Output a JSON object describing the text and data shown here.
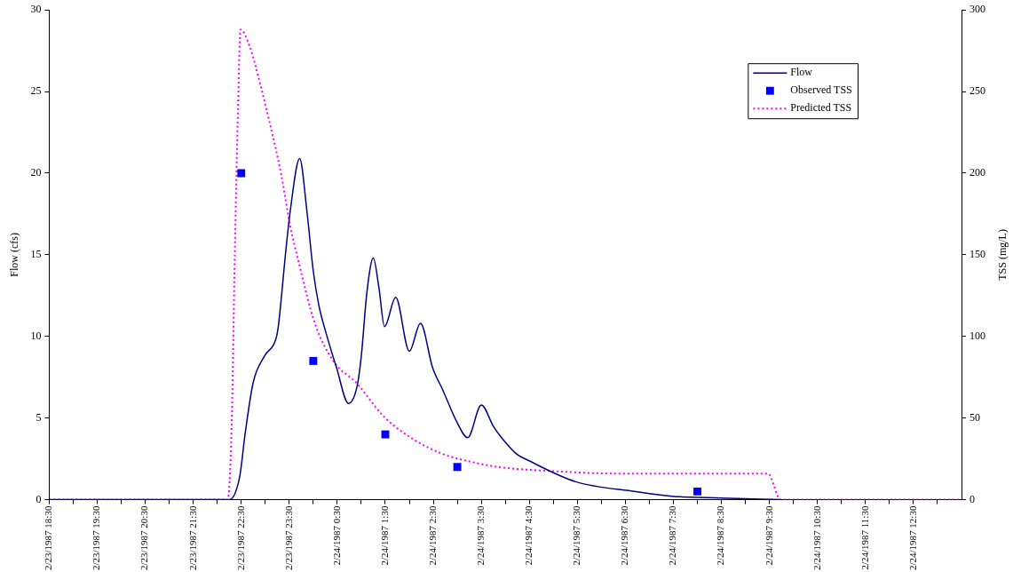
{
  "chart_data": {
    "type": "line",
    "ylabel": "Flow (cfs)",
    "y2label": "TSS (mg/L)",
    "legend": "top right",
    "xlim": [
      "1987-02-23T18:30",
      "1987-02-24T13:30"
    ],
    "xticks": [
      {
        "value": "1987-02-23T18:30",
        "label": "2/23/1987 18:30"
      },
      {
        "value": "1987-02-23T19:00",
        "label": null
      },
      {
        "value": "1987-02-23T19:30",
        "label": "2/23/1987 19:30"
      },
      {
        "value": "1987-02-23T20:00",
        "label": null
      },
      {
        "value": "1987-02-23T20:30",
        "label": "2/23/1987 20:30"
      },
      {
        "value": "1987-02-23T21:00",
        "label": null
      },
      {
        "value": "1987-02-23T21:30",
        "label": "2/23/1987 21:30"
      },
      {
        "value": "1987-02-23T22:00",
        "label": null
      },
      {
        "value": "1987-02-23T22:30",
        "label": "2/23/1987 22:30"
      },
      {
        "value": "1987-02-23T23:00",
        "label": null
      },
      {
        "value": "1987-02-23T23:30",
        "label": "2/23/1987 23:30"
      },
      {
        "value": "1987-02-24T00:00",
        "label": null
      },
      {
        "value": "1987-02-24T00:30",
        "label": "2/24/1987 0:30"
      },
      {
        "value": "1987-02-24T01:00",
        "label": null
      },
      {
        "value": "1987-02-24T01:30",
        "label": "2/24/1987 1:30"
      },
      {
        "value": "1987-02-24T02:00",
        "label": null
      },
      {
        "value": "1987-02-24T02:30",
        "label": "2/24/1987 2:30"
      },
      {
        "value": "1987-02-24T03:00",
        "label": null
      },
      {
        "value": "1987-02-24T03:30",
        "label": "2/24/1987 3:30"
      },
      {
        "value": "1987-02-24T04:00",
        "label": null
      },
      {
        "value": "1987-02-24T04:30",
        "label": "2/24/1987 4:30"
      },
      {
        "value": "1987-02-24T05:00",
        "label": null
      },
      {
        "value": "1987-02-24T05:30",
        "label": "2/24/1987 5:30"
      },
      {
        "value": "1987-02-24T06:00",
        "label": null
      },
      {
        "value": "1987-02-24T06:30",
        "label": "2/24/1987 6:30"
      },
      {
        "value": "1987-02-24T07:00",
        "label": null
      },
      {
        "value": "1987-02-24T07:30",
        "label": "2/24/1987 7:30"
      },
      {
        "value": "1987-02-24T08:00",
        "label": null
      },
      {
        "value": "1987-02-24T08:30",
        "label": "2/24/1987 8:30"
      },
      {
        "value": "1987-02-24T09:00",
        "label": null
      },
      {
        "value": "1987-02-24T09:30",
        "label": "2/24/1987 9:30"
      },
      {
        "value": "1987-02-24T10:00",
        "label": null
      },
      {
        "value": "1987-02-24T10:30",
        "label": "2/24/1987 10:30"
      },
      {
        "value": "1987-02-24T11:00",
        "label": null
      },
      {
        "value": "1987-02-24T11:30",
        "label": "2/24/1987 11:30"
      },
      {
        "value": "1987-02-24T12:00",
        "label": null
      },
      {
        "value": "1987-02-24T12:30",
        "label": "2/24/1987 12:30"
      },
      {
        "value": "1987-02-24T13:00",
        "label": null
      }
    ],
    "ylim": [
      0,
      30
    ],
    "yticks": [
      0,
      5,
      10,
      15,
      20,
      25,
      30
    ],
    "y2lim": [
      0,
      300
    ],
    "y2ticks": [
      0,
      50,
      100,
      150,
      200,
      250,
      300
    ],
    "series": [
      {
        "name": "Flow",
        "color": "#000080",
        "marker": "none",
        "line_style": "solid",
        "x": [
          "1987-02-23T18:30",
          "1987-02-23T22:15",
          "1987-02-23T22:28",
          "1987-02-23T22:35",
          "1987-02-23T22:45",
          "1987-02-23T22:59",
          "1987-02-23T23:13",
          "1987-02-23T23:16",
          "1987-02-23T23:26",
          "1987-02-23T23:31",
          "1987-02-23T23:43",
          "1987-02-23T23:52",
          "1987-02-24T00:00",
          "1987-02-24T00:07",
          "1987-02-24T00:16",
          "1987-02-24T00:29",
          "1987-02-24T00:44",
          "1987-02-24T00:55",
          "1987-02-24T01:00",
          "1987-02-24T01:07",
          "1987-02-24T01:15",
          "1987-02-24T01:22",
          "1987-02-24T01:29",
          "1987-02-24T01:43",
          "1987-02-24T02:00",
          "1987-02-24T02:14",
          "1987-02-24T02:29",
          "1987-02-24T02:42",
          "1987-02-24T02:59",
          "1987-02-24T03:13",
          "1987-02-24T03:30",
          "1987-02-24T03:45",
          "1987-02-24T03:52",
          "1987-02-24T04:14",
          "1987-02-24T04:29",
          "1987-02-24T05:28",
          "1987-02-24T06:43",
          "1987-02-24T07:31",
          "1987-02-24T08:30",
          "1987-02-24T09:45"
        ],
        "values": [
          0,
          0,
          1.4,
          4.1,
          7.2,
          8.8,
          9.8,
          10.5,
          15.4,
          17.6,
          20.9,
          17.7,
          14.0,
          11.9,
          10.2,
          8.1,
          5.9,
          7.0,
          8.8,
          12.7,
          14.8,
          13.0,
          10.6,
          12.4,
          9.1,
          10.8,
          8.1,
          6.7,
          4.8,
          3.8,
          5.8,
          4.5,
          4.0,
          2.8,
          2.4,
          1.1,
          0.5,
          0.2,
          0.1,
          0
        ]
      },
      {
        "name": "Observed TSS",
        "type": "scatter",
        "color": "#0000ff",
        "marker": "square",
        "axis": "y2",
        "x": [
          "1987-02-23T22:30",
          "1987-02-24T00:00",
          "1987-02-24T01:30",
          "1987-02-24T03:00",
          "1987-02-24T08:00"
        ],
        "values": [
          200,
          85,
          40,
          20,
          5
        ]
      },
      {
        "name": "Predicted TSS",
        "color": "#ff00ff",
        "marker": "none",
        "line_style": "dotted",
        "axis": "y2",
        "x": [
          "1987-02-23T18:30",
          "1987-02-23T22:13",
          "1987-02-23T22:18",
          "1987-02-23T22:22",
          "1987-02-23T22:26",
          "1987-02-23T22:29",
          "1987-02-23T22:41",
          "1987-02-23T22:54",
          "1987-02-23T23:05",
          "1987-02-23T23:20",
          "1987-02-23T23:31",
          "1987-02-23T23:42",
          "1987-02-24T00:02",
          "1987-02-24T00:25",
          "1987-02-24T00:55",
          "1987-02-24T01:28",
          "1987-02-24T02:05",
          "1987-02-24T02:42",
          "1987-02-24T03:19",
          "1987-02-24T03:52",
          "1987-02-24T04:59",
          "1987-02-24T06:20",
          "1987-02-24T09:28",
          "1987-02-24T09:44",
          "1987-02-24T13:30"
        ],
        "values": [
          0,
          0,
          45,
          152,
          241,
          288,
          277,
          254,
          232,
          199,
          168,
          145,
          108,
          85,
          71,
          51,
          37,
          28,
          23,
          20,
          17.5,
          16,
          16,
          0,
          0
        ]
      }
    ]
  }
}
